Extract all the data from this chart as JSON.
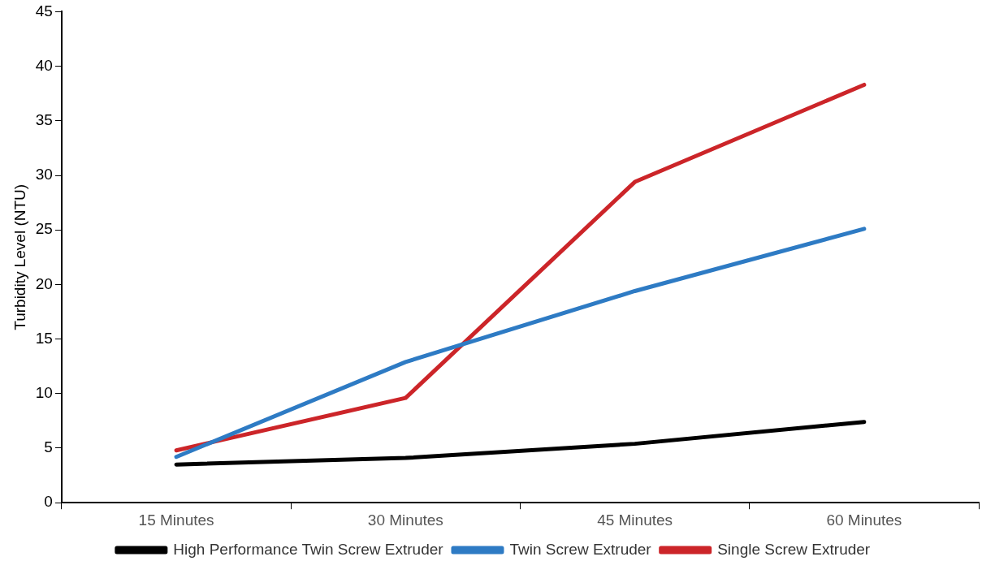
{
  "chart_data": {
    "type": "line",
    "ylabel": "Turbidity Level (NTU)",
    "categories": [
      "15 Minutes",
      "30 Minutes",
      "45 Minutes",
      "60 Minutes"
    ],
    "series": [
      {
        "name": "High Performance Twin Screw Extruder",
        "color": "#000000",
        "values": [
          3.5,
          4.1,
          5.4,
          7.4
        ]
      },
      {
        "name": "Twin Screw Extruder",
        "color": "#2e7bc4",
        "values": [
          4.2,
          12.9,
          19.4,
          25.1
        ]
      },
      {
        "name": "Single Screw Extruder",
        "color": "#cc2529",
        "values": [
          4.8,
          9.6,
          29.4,
          38.3
        ]
      }
    ],
    "ylim": [
      0,
      45
    ],
    "yticks": [
      0,
      5,
      10,
      15,
      20,
      25,
      30,
      35,
      40,
      45
    ],
    "grid": false,
    "legend": "bottom",
    "marker": "none",
    "line_style": "solid"
  }
}
